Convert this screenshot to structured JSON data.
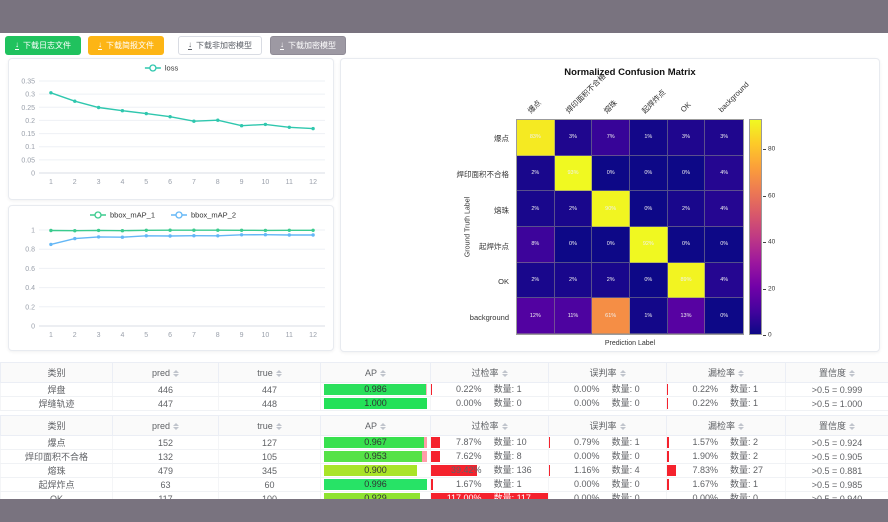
{
  "toolbar": {
    "buttons": [
      {
        "label": "下载日志文件",
        "variant": "green"
      },
      {
        "label": "下载简报文件",
        "variant": "orange"
      },
      {
        "label": "下载非加密模型",
        "variant": "white"
      },
      {
        "label": "下载加密模型",
        "variant": "gray"
      }
    ]
  },
  "colors": {
    "topbar": "#79737F",
    "green_button": "#20C25E",
    "orange_button": "#FDB515",
    "gray_button": "#9D99A3",
    "loss_line": "#2FC7AE",
    "map1_line": "#3BCB8E",
    "map2_line": "#64B7F6",
    "rate_bar_red": "#F5222D"
  },
  "chart_data": [
    {
      "type": "line",
      "title": "",
      "x": [
        1,
        2,
        3,
        4,
        5,
        6,
        7,
        8,
        9,
        10,
        11,
        12
      ],
      "series": [
        {
          "name": "loss",
          "color": "#2FC7AE",
          "values": [
            0.305,
            0.273,
            0.249,
            0.237,
            0.226,
            0.214,
            0.197,
            0.201,
            0.18,
            0.185,
            0.174,
            0.169
          ]
        }
      ],
      "ylim": [
        0,
        0.35
      ],
      "yticks": [
        0,
        0.05,
        0.1,
        0.15,
        0.2,
        0.25,
        0.3,
        0.35
      ],
      "legend_position": "top",
      "grid": true
    },
    {
      "type": "line",
      "title": "",
      "x": [
        1,
        2,
        3,
        4,
        5,
        6,
        7,
        8,
        9,
        10,
        11,
        12
      ],
      "series": [
        {
          "name": "bbox_mAP_1",
          "color": "#3BCB8E",
          "values": [
            0.995,
            0.993,
            0.996,
            0.993,
            0.997,
            0.998,
            0.998,
            0.998,
            0.997,
            0.996,
            0.997,
            0.997
          ]
        },
        {
          "name": "bbox_mAP_2",
          "color": "#64B7F6",
          "values": [
            0.85,
            0.91,
            0.928,
            0.925,
            0.94,
            0.937,
            0.941,
            0.94,
            0.95,
            0.951,
            0.948,
            0.948
          ]
        }
      ],
      "ylim": [
        0,
        1
      ],
      "yticks": [
        0,
        0.2,
        0.4,
        0.6,
        0.8,
        1
      ],
      "legend_position": "top",
      "grid": true
    },
    {
      "type": "heatmap",
      "title": "Normalized Confusion Matrix",
      "xlabel": "Prediction Label",
      "ylabel": "Ground Truth Label",
      "categories": [
        "爆点",
        "焊印面积不合格",
        "熔珠",
        "起焊炸点",
        "OK",
        "background"
      ],
      "unit": "%",
      "vmax": 93,
      "colormap": "plasma",
      "colorbar_ticks": [
        0,
        20,
        40,
        60,
        80
      ],
      "matrix": [
        [
          83,
          3,
          7,
          1,
          3,
          3
        ],
        [
          2,
          93,
          0,
          0,
          0,
          4
        ],
        [
          2,
          2,
          90,
          0,
          2,
          4
        ],
        [
          8,
          0,
          0,
          92,
          0,
          0
        ],
        [
          2,
          2,
          2,
          0,
          89,
          4
        ],
        [
          12,
          11,
          61,
          1,
          13,
          0
        ]
      ]
    }
  ],
  "tables": {
    "columns": [
      {
        "label": "类别",
        "sortable": false
      },
      {
        "label": "pred",
        "sortable": true
      },
      {
        "label": "true",
        "sortable": true
      },
      {
        "label": "AP",
        "sortable": true
      },
      {
        "label": "过检率",
        "sortable": true
      },
      {
        "label": "误判率",
        "sortable": true
      },
      {
        "label": "漏检率",
        "sortable": true
      },
      {
        "label": "置信度",
        "sortable": true
      }
    ],
    "groups": [
      {
        "rows": [
          {
            "name": "焊盘",
            "pred": "446",
            "true": "447",
            "ap": "0.986",
            "ap_pct": 98.6,
            "ap_color": "#2BE05C",
            "ap_rest_color": "#FFB3C1",
            "over_rate": "0.22%",
            "over_count": "数量: 1",
            "over_bar": 0.25,
            "mis_rate": "0.00%",
            "mis_count": "数量: 0",
            "mis_bar": 0,
            "miss_rate": "0.22%",
            "miss_count": "数量: 1",
            "miss_bar": 0.25,
            "conf": ">0.5 = 0.999"
          },
          {
            "name": "焊缝轨迹",
            "pred": "447",
            "true": "448",
            "ap": "1.000",
            "ap_pct": 100,
            "ap_color": "#23E158",
            "ap_rest_color": "",
            "over_rate": "0.00%",
            "over_count": "数量: 0",
            "over_bar": 0,
            "mis_rate": "0.00%",
            "mis_count": "数量: 0",
            "mis_bar": 0,
            "miss_rate": "0.22%",
            "miss_count": "数量: 1",
            "miss_bar": 0.25,
            "conf": ">0.5 = 1.000"
          }
        ]
      },
      {
        "rows": [
          {
            "name": "爆点",
            "pred": "152",
            "true": "127",
            "ap": "0.967",
            "ap_pct": 96.7,
            "ap_color": "#38E14E",
            "ap_rest_color": "#FF9DA8",
            "over_rate": "7.87%",
            "over_count": "数量: 10",
            "over_bar": 7.87,
            "mis_rate": "0.79%",
            "mis_count": "数量: 1",
            "mis_bar": 0.79,
            "miss_rate": "1.57%",
            "miss_count": "数量: 2",
            "miss_bar": 1.57,
            "conf": ">0.5 = 0.924"
          },
          {
            "name": "焊印面积不合格",
            "pred": "132",
            "true": "105",
            "ap": "0.953",
            "ap_pct": 95.3,
            "ap_color": "#56E247",
            "ap_rest_color": "#FF9DA8",
            "over_rate": "7.62%",
            "over_count": "数量: 8",
            "over_bar": 7.62,
            "mis_rate": "0.00%",
            "mis_count": "数量: 0",
            "mis_bar": 0,
            "miss_rate": "1.90%",
            "miss_count": "数量: 2",
            "miss_bar": 1.9,
            "conf": ">0.5 = 0.905"
          },
          {
            "name": "熔珠",
            "pred": "479",
            "true": "345",
            "ap": "0.900",
            "ap_pct": 90,
            "ap_color": "#A9E428",
            "ap_rest_color": "",
            "over_rate": "39.42%",
            "over_count": "数量: 136",
            "over_bar": 39.42,
            "mis_rate": "1.16%",
            "mis_count": "数量: 4",
            "mis_bar": 1.16,
            "miss_rate": "7.83%",
            "miss_count": "数量: 27",
            "miss_bar": 7.83,
            "conf": ">0.5 = 0.881"
          },
          {
            "name": "起焊炸点",
            "pred": "63",
            "true": "60",
            "ap": "0.996",
            "ap_pct": 99.6,
            "ap_color": "#27E366",
            "ap_rest_color": "",
            "over_rate": "1.67%",
            "over_count": "数量: 1",
            "over_bar": 1.67,
            "mis_rate": "0.00%",
            "mis_count": "数量: 0",
            "mis_bar": 0,
            "miss_rate": "1.67%",
            "miss_count": "数量: 1",
            "miss_bar": 1.67,
            "conf": ">0.5 = 0.985"
          },
          {
            "name": "OK",
            "pred": "117",
            "true": "100",
            "ap": "0.929",
            "ap_pct": 92.9,
            "ap_color": "#8FE331",
            "ap_rest_color": "",
            "over_rate": "117.00%",
            "over_count": "数量: 117",
            "over_bar": 117,
            "mis_rate": "0.00%",
            "mis_count": "数量: 0",
            "mis_bar": 0,
            "miss_rate": "0.00%",
            "miss_count": "数量: 0",
            "miss_bar": 0,
            "conf": ">0.5 = 0.940"
          }
        ]
      }
    ]
  }
}
